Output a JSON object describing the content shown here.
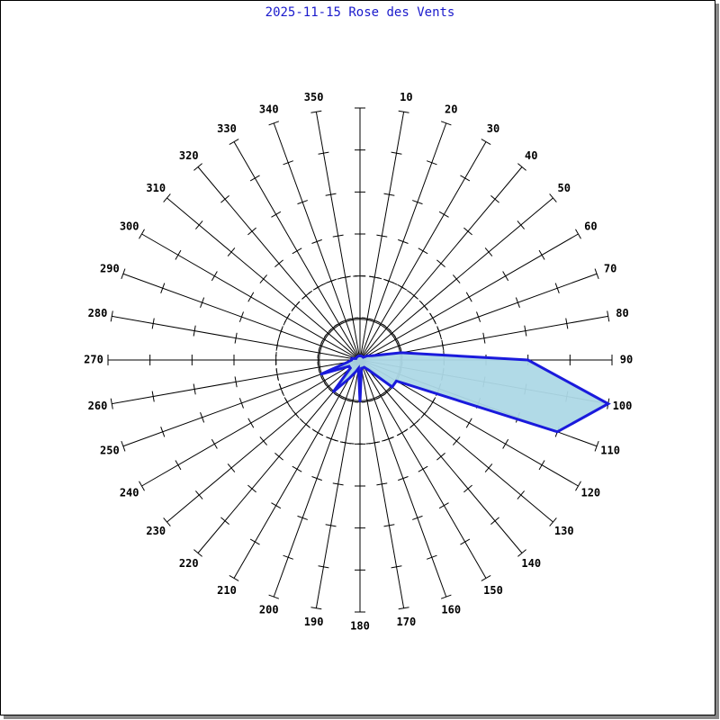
{
  "chart_data": {
    "type": "rose",
    "title": "2025-11-15 Rose des Vents",
    "categories": [
      null,
      "10",
      "20",
      "30",
      "40",
      "50",
      "60",
      "70",
      "80",
      "90",
      "100",
      "110",
      "120",
      "130",
      "140",
      "150",
      "160",
      "170",
      "180",
      "190",
      "200",
      "210",
      "220",
      "230",
      "240",
      "250",
      "260",
      "270",
      "280",
      "290",
      "300",
      "310",
      "320",
      "330",
      "340",
      "350"
    ],
    "values": [
      0.1,
      0.1,
      0.1,
      0.1,
      0.1,
      0.1,
      0.2,
      0.3,
      1.0,
      4.0,
      6.0,
      5.0,
      1.0,
      1.0,
      0.3,
      0.2,
      0.2,
      0.2,
      1.0,
      0.2,
      0.3,
      0.5,
      1.0,
      0.3,
      0.3,
      1.0,
      0.3,
      0.2,
      0.2,
      0.1,
      0.1,
      0.1,
      0.1,
      0.1,
      0.1,
      0.1
    ],
    "color": "#1a1adc",
    "fill": "#add8e6",
    "rlim": [
      0,
      6
    ],
    "rticks": [
      1,
      2,
      3,
      4,
      5,
      6
    ],
    "circles": [
      {
        "r": 0.97,
        "style": "solid"
      },
      {
        "r": 2,
        "style": "dashed"
      }
    ]
  }
}
